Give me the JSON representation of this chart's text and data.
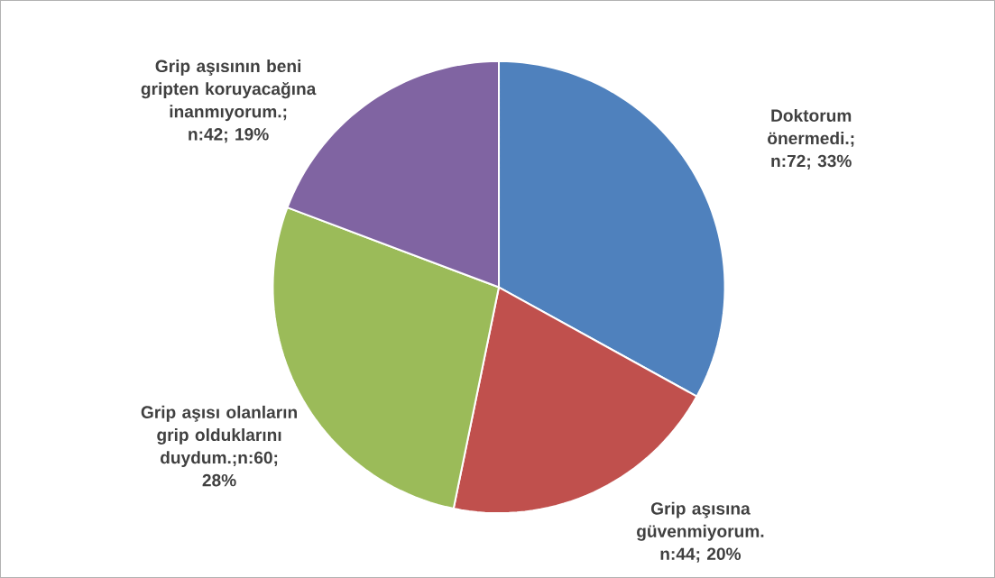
{
  "chart_data": {
    "type": "pie",
    "categories": [
      "Doktorum önermedi.; n:72; 33%",
      "Grip aşısına güvenmiyorum. n:44; 20%",
      "Grip aşısı olanların grip olduklarını duydum.;n:60; 28%",
      "Grip aşısının beni gripten koruyacağına inanmıyorum.; n:42; 19%"
    ],
    "values": [
      72,
      44,
      60,
      42
    ],
    "colors": [
      "#4f81bd",
      "#c0504d",
      "#9bbb59",
      "#8064a2"
    ]
  }
}
